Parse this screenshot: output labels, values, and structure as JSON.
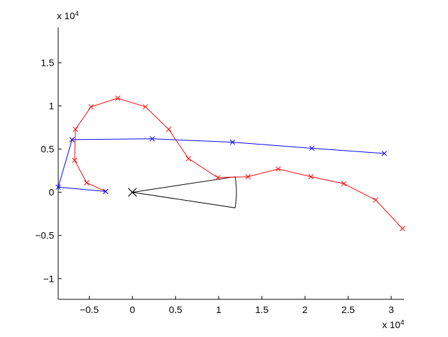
{
  "chart_data": {
    "type": "line",
    "x_exponent_label": "x 10",
    "x_exponent_power": "4",
    "y_exponent_label": "x 10",
    "y_exponent_power": "4",
    "xlim": [
      -0.86,
      3.15
    ],
    "ylim": [
      -1.24,
      1.91
    ],
    "xticks": [
      -0.5,
      0,
      0.5,
      1,
      1.5,
      2,
      2.5,
      3
    ],
    "xtick_labels": [
      "−0.5",
      "0",
      "0.5",
      "1",
      "1.5",
      "2",
      "2.5",
      "3"
    ],
    "yticks": [
      -1,
      -0.5,
      0,
      0.5,
      1,
      1.5
    ],
    "ytick_labels": [
      "−1",
      "−0.5",
      "0",
      "0.5",
      "1",
      "1.5"
    ],
    "grid": false,
    "series": [
      {
        "color": "#ff0000",
        "marker": "x",
        "x": [
          -0.31,
          -0.53,
          -0.67,
          -0.66,
          -0.48,
          -0.17,
          0.15,
          0.42,
          0.65,
          0.99,
          1.34,
          1.69,
          2.07,
          2.45,
          2.82,
          3.13
        ],
        "y": [
          0.01,
          0.11,
          0.37,
          0.73,
          0.99,
          1.09,
          0.99,
          0.73,
          0.39,
          0.17,
          0.18,
          0.27,
          0.18,
          0.1,
          -0.09,
          -0.42
        ]
      },
      {
        "color": "#0000ff",
        "marker": "x",
        "x": [
          -0.31,
          -0.86,
          -0.7,
          0.23,
          1.16,
          2.08,
          2.92
        ],
        "y": [
          0.01,
          0.06,
          0.61,
          0.62,
          0.58,
          0.51,
          0.45
        ]
      }
    ],
    "annotations": [
      {
        "kind": "sector",
        "color": "#000000",
        "center": [
          0,
          0
        ],
        "vertex_upper": [
          1.19,
          0.18
        ],
        "vertex_lower": [
          1.19,
          -0.18
        ]
      }
    ]
  }
}
